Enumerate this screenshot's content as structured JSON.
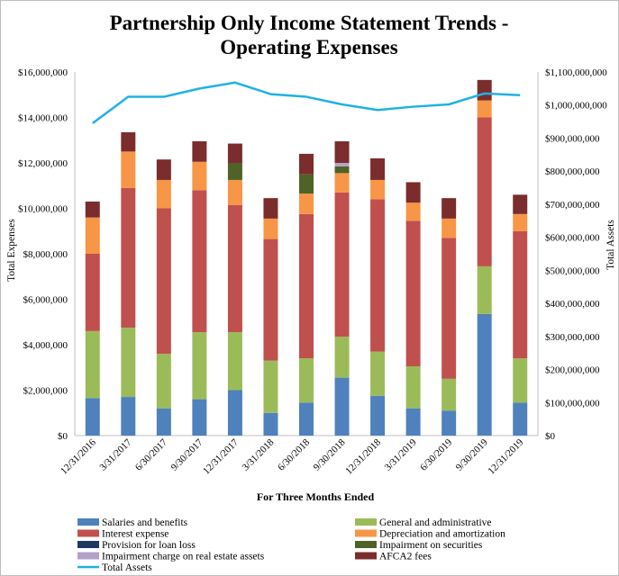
{
  "chart_data": {
    "type": "bar",
    "stacked": true,
    "title_line1": "Partnership Only Income Statement Trends -",
    "title_line2": "Operating Expenses",
    "xlabel": "For Three Months  Ended",
    "ylabel": "Total Expenses",
    "y2label": "Total Assets",
    "ylim": [
      0,
      16000000
    ],
    "y2lim": [
      0,
      1100000000
    ],
    "y_ticks": [
      "$0",
      "$2,000,000",
      "$4,000,000",
      "$6,000,000",
      "$8,000,000",
      "$10,000,000",
      "$12,000,000",
      "$14,000,000",
      "$16,000,000"
    ],
    "y2_ticks": [
      "$0",
      "$100,000,000",
      "$200,000,000",
      "$300,000,000",
      "$400,000,000",
      "$500,000,000",
      "$600,000,000",
      "$700,000,000",
      "$800,000,000",
      "$900,000,000",
      "$1,000,000,000",
      "$1,100,000,000"
    ],
    "categories": [
      "12/31/2016",
      "3/31/2017",
      "6/30/2017",
      "9/30/2017",
      "12/31/2017",
      "3/31/2018",
      "6/30/2018",
      "9/30/2018",
      "12/31/2018",
      "3/31/2019",
      "6/30/2019",
      "9/30/2019",
      "12/31/2019"
    ],
    "series": [
      {
        "name": "Salaries and benefits",
        "color": "#4f81bd",
        "values": [
          1650000,
          1700000,
          1200000,
          1600000,
          2000000,
          1000000,
          1450000,
          2550000,
          1750000,
          1200000,
          1100000,
          5350000,
          1450000
        ]
      },
      {
        "name": "General and administrative",
        "color": "#9bbb59",
        "values": [
          2950000,
          3050000,
          2400000,
          2950000,
          2550000,
          2300000,
          1950000,
          1800000,
          1950000,
          1850000,
          1400000,
          2100000,
          1950000
        ]
      },
      {
        "name": "Interest expense",
        "color": "#c0504d",
        "values": [
          3400000,
          6150000,
          6400000,
          6250000,
          5600000,
          5350000,
          6350000,
          6350000,
          6700000,
          6400000,
          6200000,
          6550000,
          5600000
        ]
      },
      {
        "name": "Depreciation and amortization",
        "color": "#f79646",
        "values": [
          1600000,
          1600000,
          1250000,
          1250000,
          1100000,
          900000,
          900000,
          850000,
          850000,
          800000,
          850000,
          750000,
          750000
        ]
      },
      {
        "name": "Provision for loan loss",
        "color": "#1f3864",
        "values": [
          0,
          0,
          0,
          0,
          0,
          0,
          0,
          0,
          0,
          0,
          0,
          0,
          0
        ]
      },
      {
        "name": "Impairment on securities",
        "color": "#4f6228",
        "values": [
          0,
          0,
          0,
          0,
          750000,
          0,
          850000,
          300000,
          0,
          0,
          0,
          0,
          0
        ]
      },
      {
        "name": "Impairment charge on real estate assets",
        "color": "#b3a2c7",
        "values": [
          0,
          0,
          0,
          0,
          0,
          0,
          0,
          150000,
          0,
          0,
          0,
          0,
          0
        ]
      },
      {
        "name": "AFCA2 fees",
        "color": "#7b2c2c",
        "values": [
          700000,
          850000,
          900000,
          900000,
          850000,
          900000,
          900000,
          950000,
          950000,
          900000,
          900000,
          900000,
          850000
        ]
      }
    ],
    "line_series": {
      "name": "Total Assets",
      "color": "#1fb0e6",
      "axis": "right",
      "values": [
        945000000,
        1025000000,
        1025000000,
        1050000000,
        1068000000,
        1033000000,
        1025000000,
        1002000000,
        985000000,
        995000000,
        1002000000,
        1035000000,
        1030000000
      ]
    },
    "legend_position": "bottom",
    "grid": false
  }
}
